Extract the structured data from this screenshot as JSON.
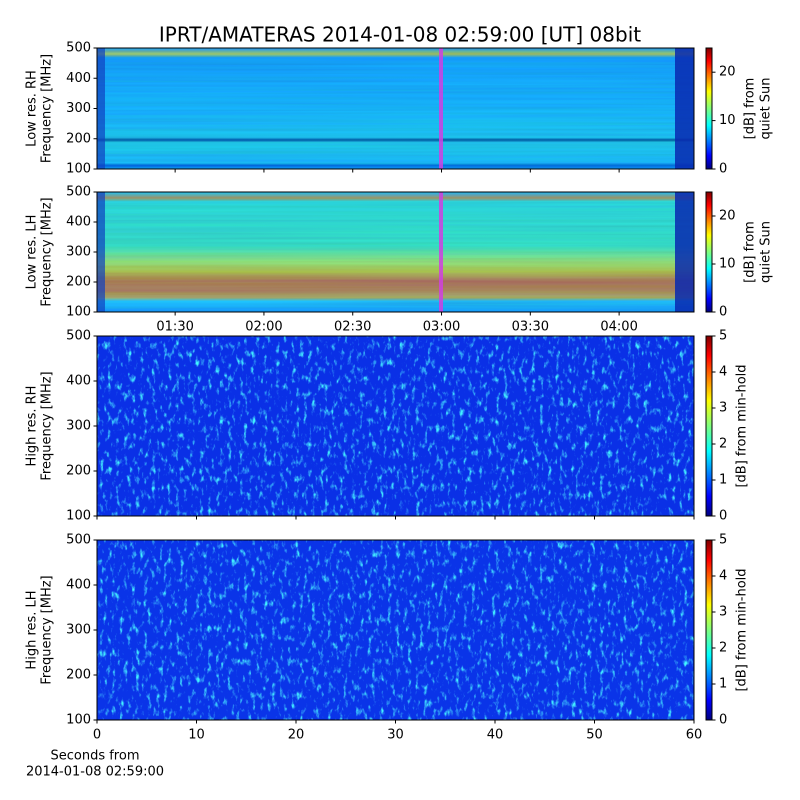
{
  "chart_data": {
    "type": "spectrogram",
    "title": "IPRT/AMATERAS 2014-01-08 02:59:00 [UT]   08bit",
    "xlabel_lines": [
      "Seconds from",
      "2014-01-08 02:59:00"
    ],
    "panels": [
      {
        "ylabel_lines": [
          "Low res. RH",
          "Frequency [MHz]"
        ],
        "ylim": [
          100,
          500
        ],
        "yticks": [
          100,
          200,
          300,
          400,
          500
        ],
        "xlim": [
          63.6,
          265.3
        ],
        "xticks": [
          {
            "value": 90,
            "label": "01:30"
          },
          {
            "value": 120,
            "label": "02:00"
          },
          {
            "value": 150,
            "label": "02:30"
          },
          {
            "value": 180,
            "label": "03:00"
          },
          {
            "value": 210,
            "label": "03:30"
          },
          {
            "value": 240,
            "label": "04:00"
          }
        ],
        "show_xtick_labels": false,
        "colormap": "jet",
        "colorbar": {
          "label_lines": [
            "[dB] from",
            "quiet Sun"
          ],
          "lim": [
            0,
            25
          ],
          "ticks": [
            0,
            10,
            20
          ]
        }
      },
      {
        "ylabel_lines": [
          "Low res. LH",
          "Frequency [MHz]"
        ],
        "ylim": [
          100,
          500
        ],
        "yticks": [
          100,
          200,
          300,
          400,
          500
        ],
        "xlim": [
          63.6,
          265.3
        ],
        "xticks": [
          {
            "value": 90,
            "label": "01:30"
          },
          {
            "value": 120,
            "label": "02:00"
          },
          {
            "value": 150,
            "label": "02:30"
          },
          {
            "value": 180,
            "label": "03:00"
          },
          {
            "value": 210,
            "label": "03:30"
          },
          {
            "value": 240,
            "label": "04:00"
          }
        ],
        "show_xtick_labels": true,
        "colormap": "jet",
        "colorbar": {
          "label_lines": [
            "[dB] from",
            "quiet Sun"
          ],
          "lim": [
            0,
            25
          ],
          "ticks": [
            0,
            10,
            20
          ]
        }
      },
      {
        "ylabel_lines": [
          "High res. RH",
          "Frequency [MHz]"
        ],
        "ylim": [
          100,
          500
        ],
        "yticks": [
          100,
          200,
          300,
          400,
          500
        ],
        "xlim": [
          0,
          60
        ],
        "xticks": [
          0,
          10,
          20,
          30,
          40,
          50,
          60
        ],
        "show_xtick_labels": false,
        "colormap": "jet",
        "colorbar": {
          "label_lines": [
            "[dB] from min-hold"
          ],
          "lim": [
            0,
            5
          ],
          "ticks": [
            0,
            1,
            2,
            3,
            4,
            5
          ]
        }
      },
      {
        "ylabel_lines": [
          "High res. LH",
          "Frequency [MHz]"
        ],
        "ylim": [
          100,
          500
        ],
        "yticks": [
          100,
          200,
          300,
          400,
          500
        ],
        "xlim": [
          0,
          60
        ],
        "xticks": [
          0,
          10,
          20,
          30,
          40,
          50,
          60
        ],
        "show_xtick_labels": true,
        "colormap": "jet",
        "colorbar": {
          "label_lines": [
            "[dB] from min-hold"
          ],
          "lim": [
            0,
            5
          ],
          "ticks": [
            0,
            1,
            2,
            3,
            4,
            5
          ]
        }
      }
    ]
  }
}
